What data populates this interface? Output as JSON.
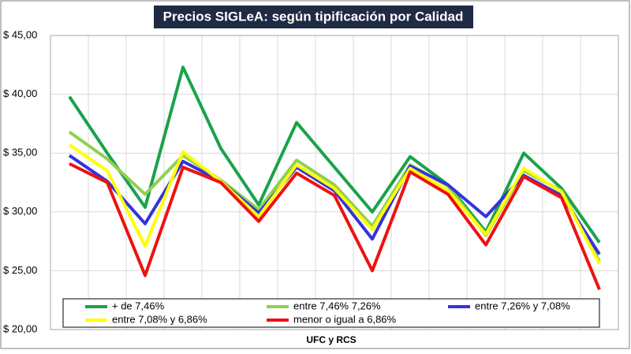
{
  "chart_data": {
    "type": "line",
    "title": "Precios SIGLeA: según tipificación por Calidad",
    "xlabel": "UFC y RCS",
    "categories": [
      null,
      null,
      null,
      null,
      null,
      null,
      null,
      null,
      null,
      null,
      null,
      null,
      null,
      null,
      null
    ],
    "ylim": [
      20,
      45
    ],
    "yticks": [
      {
        "value": 20,
        "label": "$ 20,00"
      },
      {
        "value": 25,
        "label": "$ 25,00"
      },
      {
        "value": 30,
        "label": "$ 30,00"
      },
      {
        "value": 35,
        "label": "$ 35,00"
      },
      {
        "value": 40,
        "label": "$ 40,00"
      },
      {
        "value": 45,
        "label": "$ 45,00"
      }
    ],
    "grid": true,
    "legend": "bottom",
    "series": [
      {
        "name": "+ de 7,46%",
        "color": "#1aa34a",
        "values": [
          39.8,
          35.0,
          30.4,
          42.3,
          35.4,
          30.6,
          37.6,
          33.8,
          30.0,
          34.7,
          32.3,
          28.3,
          35.0,
          32.0,
          27.4
        ]
      },
      {
        "name": "entre 7,46% 7,26%",
        "color": "#92d050",
        "values": [
          36.8,
          34.5,
          31.5,
          34.8,
          32.7,
          30.2,
          34.4,
          32.3,
          28.8,
          34.0,
          32.2,
          28.0,
          33.5,
          31.8,
          25.8
        ]
      },
      {
        "name": "entre 7,26% y 7,08%",
        "color": "#3333dd",
        "values": [
          34.8,
          32.6,
          29.0,
          34.3,
          32.6,
          29.9,
          33.8,
          31.8,
          27.7,
          33.9,
          32.3,
          29.6,
          33.1,
          31.4,
          26.4
        ]
      },
      {
        "name": "entre 7,08% y 6,86%",
        "color": "#ffff00",
        "values": [
          35.7,
          33.5,
          27.1,
          35.1,
          32.6,
          29.6,
          34.0,
          32.0,
          28.5,
          33.7,
          31.8,
          28.1,
          33.7,
          31.7,
          25.6
        ]
      },
      {
        "name": "menor o igual a 6,86%",
        "color": "#ee1111",
        "values": [
          34.1,
          32.5,
          24.6,
          33.8,
          32.5,
          29.2,
          33.3,
          31.4,
          25.0,
          33.4,
          31.5,
          27.2,
          33.0,
          31.2,
          23.4
        ]
      }
    ]
  }
}
